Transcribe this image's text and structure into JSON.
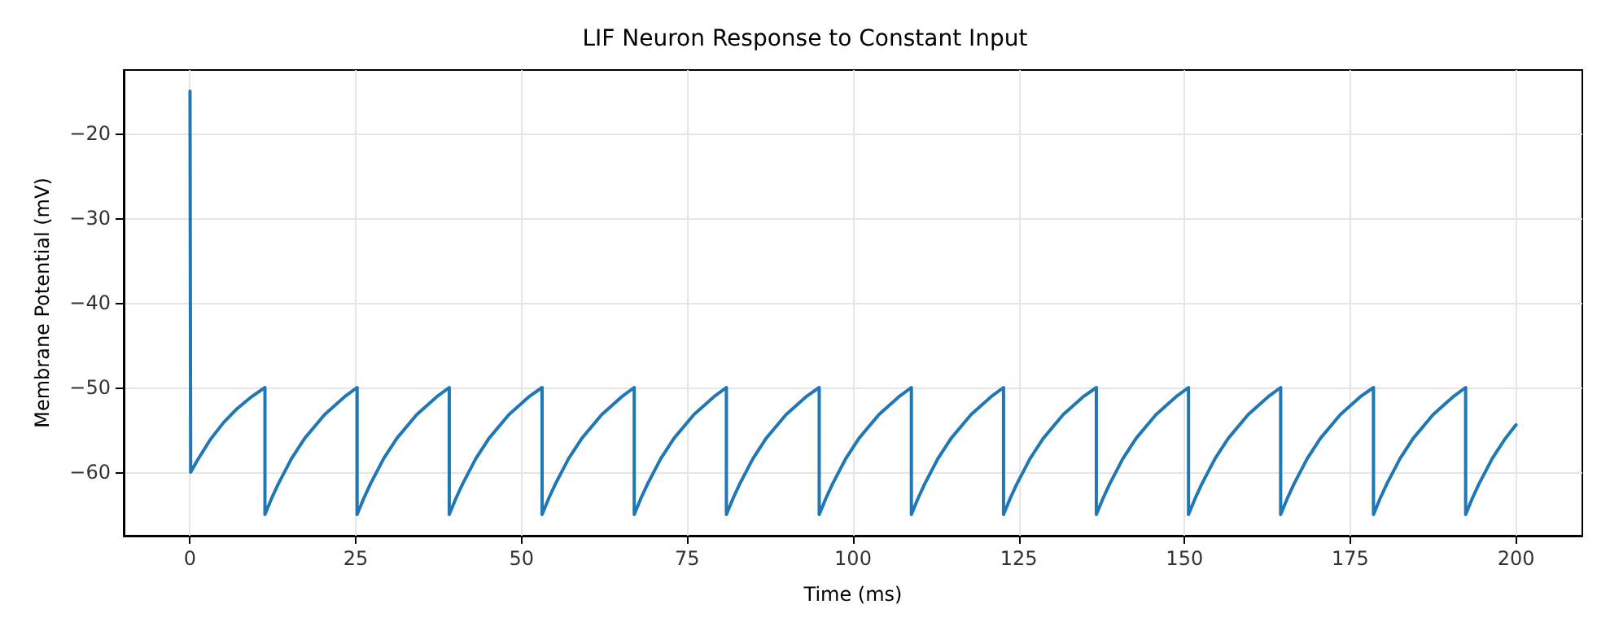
{
  "chart_data": {
    "type": "line",
    "title": "LIF Neuron Response to Constant Input",
    "xlabel": "Time (ms)",
    "ylabel": "Membrane Potential (mV)",
    "xlim": [
      -10,
      210
    ],
    "xticks": [
      0,
      25,
      50,
      75,
      100,
      125,
      150,
      175,
      200
    ],
    "ylim": [
      -67.5,
      -12.5
    ],
    "yticks": [
      -60,
      -50,
      -40,
      -30,
      -20
    ],
    "grid": true,
    "marker": "none",
    "line_style": "solid",
    "series": [
      {
        "color": "#1f77b4",
        "x": [
          0,
          0.1,
          1.1,
          3.1,
          5.1,
          7.1,
          9.1,
          11.3,
          11.3,
          12.3,
          13.3,
          15.3,
          17.3,
          20.3,
          23.3,
          25.2,
          25.2,
          26.2,
          27.2,
          29.2,
          31.2,
          34.2,
          37.2,
          39.1,
          39.1,
          40.1,
          41.1,
          43.1,
          45.1,
          48.1,
          51.1,
          53.1,
          53.1,
          54.1,
          55.1,
          57.1,
          59.1,
          62.1,
          65.1,
          67.0,
          67.0,
          68,
          69,
          71,
          73,
          76,
          79,
          80.9,
          80.9,
          81.9,
          82.9,
          84.9,
          86.9,
          89.9,
          92.9,
          94.9,
          94.9,
          95.9,
          96.9,
          98.9,
          100.9,
          103.9,
          106.9,
          108.8,
          108.8,
          109.8,
          110.8,
          112.8,
          114.8,
          117.8,
          120.8,
          122.7,
          122.7,
          123.7,
          124.7,
          126.7,
          128.7,
          131.7,
          134.7,
          136.7,
          136.7,
          137.7,
          138.7,
          140.7,
          142.7,
          145.7,
          148.7,
          150.6,
          150.6,
          151.6,
          152.6,
          154.6,
          156.6,
          159.6,
          162.6,
          164.5,
          164.5,
          165.5,
          166.5,
          168.5,
          170.5,
          173.5,
          176.5,
          178.5,
          178.5,
          179.5,
          180.5,
          182.5,
          184.5,
          187.5,
          190.5,
          192.4,
          192.4,
          193.4,
          194.4,
          196.4,
          198.4,
          200
        ],
        "values": [
          -15,
          -60,
          -58.6,
          -56.1,
          -54.1,
          -52.5,
          -51.2,
          -50,
          -65,
          -63.1,
          -61.4,
          -58.4,
          -56.0,
          -53.2,
          -51.1,
          -50,
          -65,
          -63.1,
          -61.4,
          -58.4,
          -56.0,
          -53.2,
          -51.1,
          -50,
          -65,
          -63.1,
          -61.4,
          -58.4,
          -56.0,
          -53.2,
          -51.1,
          -50,
          -65,
          -63.1,
          -61.4,
          -58.4,
          -56.0,
          -53.2,
          -51.1,
          -50,
          -65,
          -63.1,
          -61.4,
          -58.4,
          -56.0,
          -53.2,
          -51.1,
          -50,
          -65,
          -63.1,
          -61.4,
          -58.4,
          -56.0,
          -53.2,
          -51.1,
          -50,
          -65,
          -63.1,
          -61.4,
          -58.4,
          -56.0,
          -53.2,
          -51.1,
          -50,
          -65,
          -63.1,
          -61.4,
          -58.4,
          -56.0,
          -53.2,
          -51.1,
          -50,
          -65,
          -63.1,
          -61.4,
          -58.4,
          -56.0,
          -53.2,
          -51.1,
          -50,
          -65,
          -63.1,
          -61.4,
          -58.4,
          -56.0,
          -53.2,
          -51.1,
          -50,
          -65,
          -63.1,
          -61.4,
          -58.4,
          -56.0,
          -53.2,
          -51.1,
          -50,
          -65,
          -63.1,
          -61.4,
          -58.4,
          -56.0,
          -53.2,
          -51.1,
          -50,
          -65,
          -63.1,
          -61.4,
          -58.4,
          -56.0,
          -53.2,
          -51.1,
          -50,
          -65,
          -63.1,
          -61.4,
          -58.4,
          -56.0,
          -54.4
        ]
      }
    ]
  }
}
